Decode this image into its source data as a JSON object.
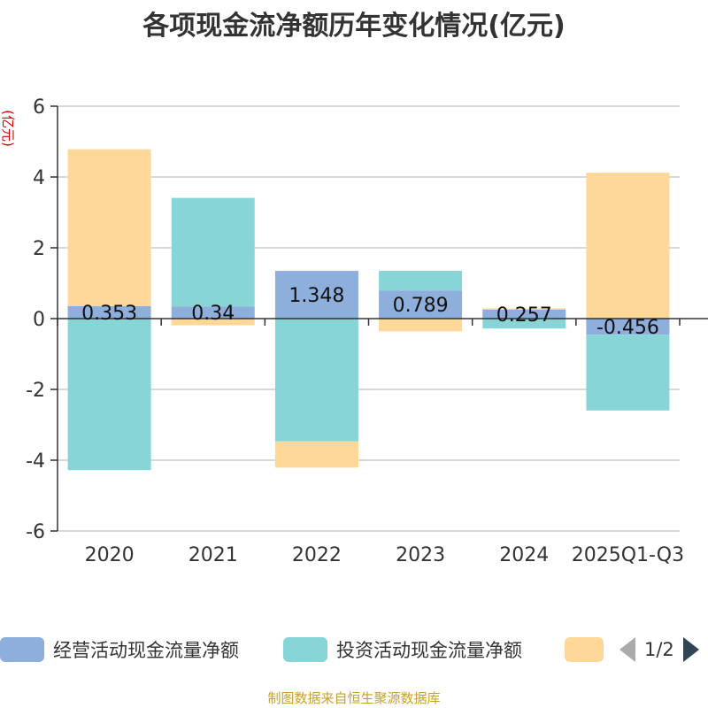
{
  "chart_data": {
    "type": "bar",
    "stacked": true,
    "title": "各项现金流净额历年变化情况(亿元)",
    "ylabel": "(亿元)",
    "ylim": [
      -6,
      6
    ],
    "yticks": [
      6,
      4,
      2,
      0,
      -2,
      -4,
      -6
    ],
    "categories": [
      "2020",
      "2021",
      "2022",
      "2023",
      "2024",
      "2025Q1-Q3"
    ],
    "grid": true,
    "legend_position": "bottom",
    "series": [
      {
        "name": "经营活动现金流量净额",
        "color": "#8eaedb",
        "values": [
          0.353,
          0.34,
          1.348,
          0.789,
          0.257,
          -0.456
        ],
        "labels": [
          "0.353",
          "0.34",
          "1.348",
          "0.789",
          "0.257",
          "-0.456"
        ]
      },
      {
        "name": "投资活动现金流量净额",
        "color": "#88d5d8",
        "values": [
          -4.28,
          3.07,
          -3.47,
          0.56,
          -0.28,
          -2.14
        ]
      },
      {
        "name": "",
        "color": "#fdd898",
        "values": [
          4.43,
          -0.19,
          -0.74,
          -0.36,
          0.03,
          4.12
        ]
      }
    ]
  },
  "legend": {
    "page": "1/2"
  },
  "source": "制图数据来自恒生聚源数据库"
}
